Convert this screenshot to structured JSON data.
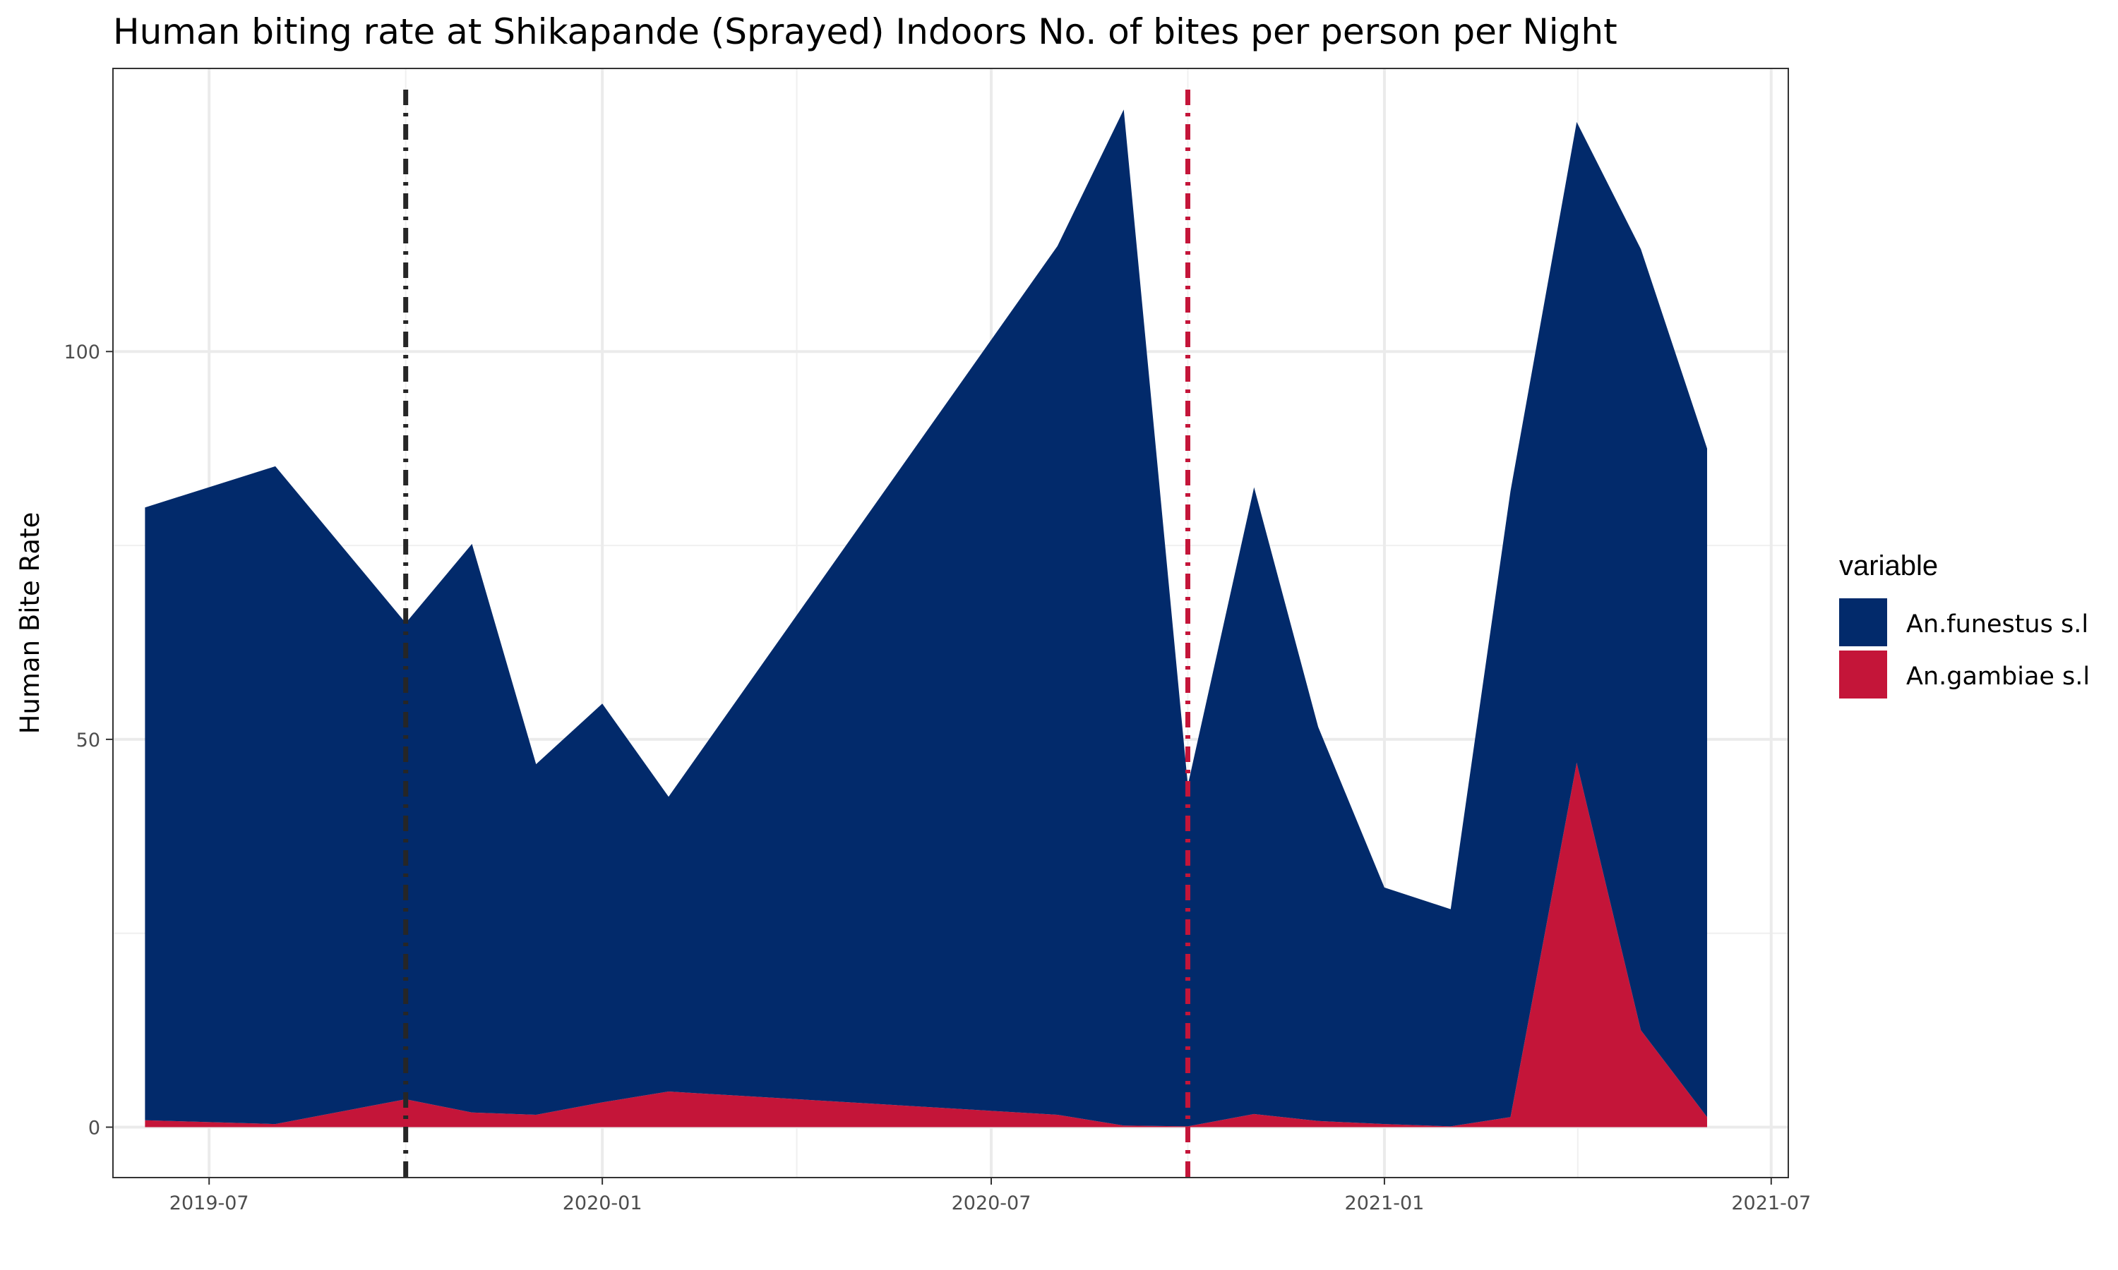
{
  "chart_data": {
    "type": "area",
    "stacked": true,
    "title": "Human biting rate at Shikapande (Sprayed) Indoors No. of bites per person per Night",
    "xlabel": "",
    "ylabel": "Human Bite Rate",
    "x_ticks": [
      "2019-07",
      "2020-01",
      "2020-07",
      "2021-01",
      "2021-07"
    ],
    "y_ticks": [
      0,
      50,
      100
    ],
    "xlim": [
      "2019-05-17",
      "2021-07-09"
    ],
    "ylim": [
      -6.5,
      136.5
    ],
    "grid": true,
    "legend": {
      "title": "variable",
      "position": "right",
      "entries": [
        "An.funestus s.l",
        "An.gambiae s.l"
      ]
    },
    "x": [
      "2019-06-01",
      "2019-08-01",
      "2019-10-01",
      "2019-11-01",
      "2019-12-01",
      "2020-01-01",
      "2020-02-01",
      "2020-08-01",
      "2020-09-01",
      "2020-10-01",
      "2020-11-01",
      "2020-12-01",
      "2021-01-01",
      "2021-02-01",
      "2021-03-01",
      "2021-04-01",
      "2021-05-01",
      "2021-06-01"
    ],
    "series": [
      {
        "name": "An.gambiae s.l",
        "color": "#c41539",
        "values": [
          0.9,
          0.4,
          3.6,
          1.9,
          1.6,
          3.2,
          4.6,
          1.6,
          0.2,
          0.1,
          1.7,
          0.8,
          0.4,
          0.1,
          1.3,
          47.0,
          12.5,
          1.3
        ]
      },
      {
        "name": "An.funestus s.l",
        "color": "#022a6b",
        "values": [
          79.0,
          84.8,
          61.4,
          73.3,
          45.2,
          51.4,
          38.0,
          112.0,
          131.0,
          44.0,
          80.8,
          50.8,
          30.5,
          28.0,
          80.7,
          82.6,
          100.7,
          86.2
        ]
      }
    ],
    "vlines": [
      {
        "x": "2019-10-01",
        "color": "#262626",
        "style": "dashdot"
      },
      {
        "x": "2020-10-01",
        "color": "#c41539",
        "style": "dashdot"
      }
    ]
  }
}
